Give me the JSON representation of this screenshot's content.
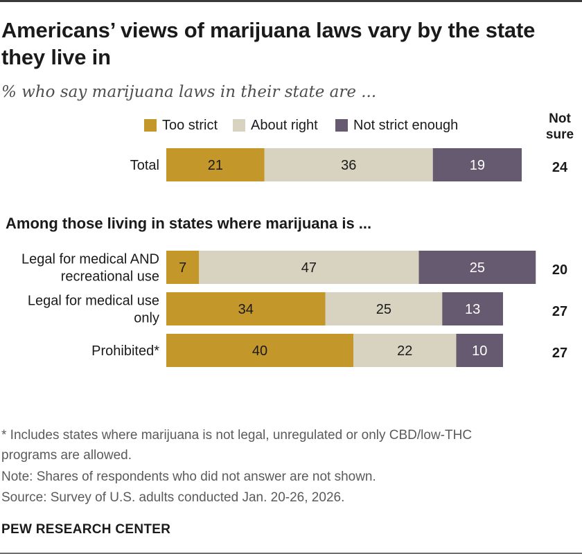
{
  "title": "Americans’ views of marijuana laws vary by the state they live in",
  "subtitle": "% who say marijuana laws in their state are ...",
  "section_heading": "Among those living in states where marijuana is ...",
  "not_sure_header": [
    "Not",
    "sure"
  ],
  "footnotes": [
    "* Includes states where marijuana is not legal, unregulated or only CBD/low-THC",
    "programs are allowed.",
    "Note: Shares of respondents who did not answer are not shown.",
    "Source: Survey of U.S. adults conducted Jan. 20-26, 2026."
  ],
  "brand": "PEW RESEARCH CENTER",
  "colors": {
    "too_strict": "#C4972A",
    "about_right": "#D8D3C0",
    "not_strict_enough": "#665A71"
  },
  "chart_data": {
    "type": "bar",
    "orientation": "horizontal",
    "stacked": true,
    "categories": [
      [
        "Total"
      ],
      [
        "Legal for medical AND",
        "recreational use"
      ],
      [
        "Legal for medical use",
        "only"
      ],
      [
        "Prohibited*"
      ]
    ],
    "series": [
      {
        "name": "Too strict",
        "values": [
          21,
          7,
          34,
          40
        ]
      },
      {
        "name": "About right",
        "values": [
          36,
          47,
          25,
          22
        ]
      },
      {
        "name": "Not strict enough",
        "values": [
          19,
          25,
          13,
          10
        ]
      }
    ],
    "not_sure": [
      24,
      20,
      27,
      27
    ],
    "xlim": [
      0,
      100
    ],
    "legend_position": "top",
    "grid": false
  }
}
